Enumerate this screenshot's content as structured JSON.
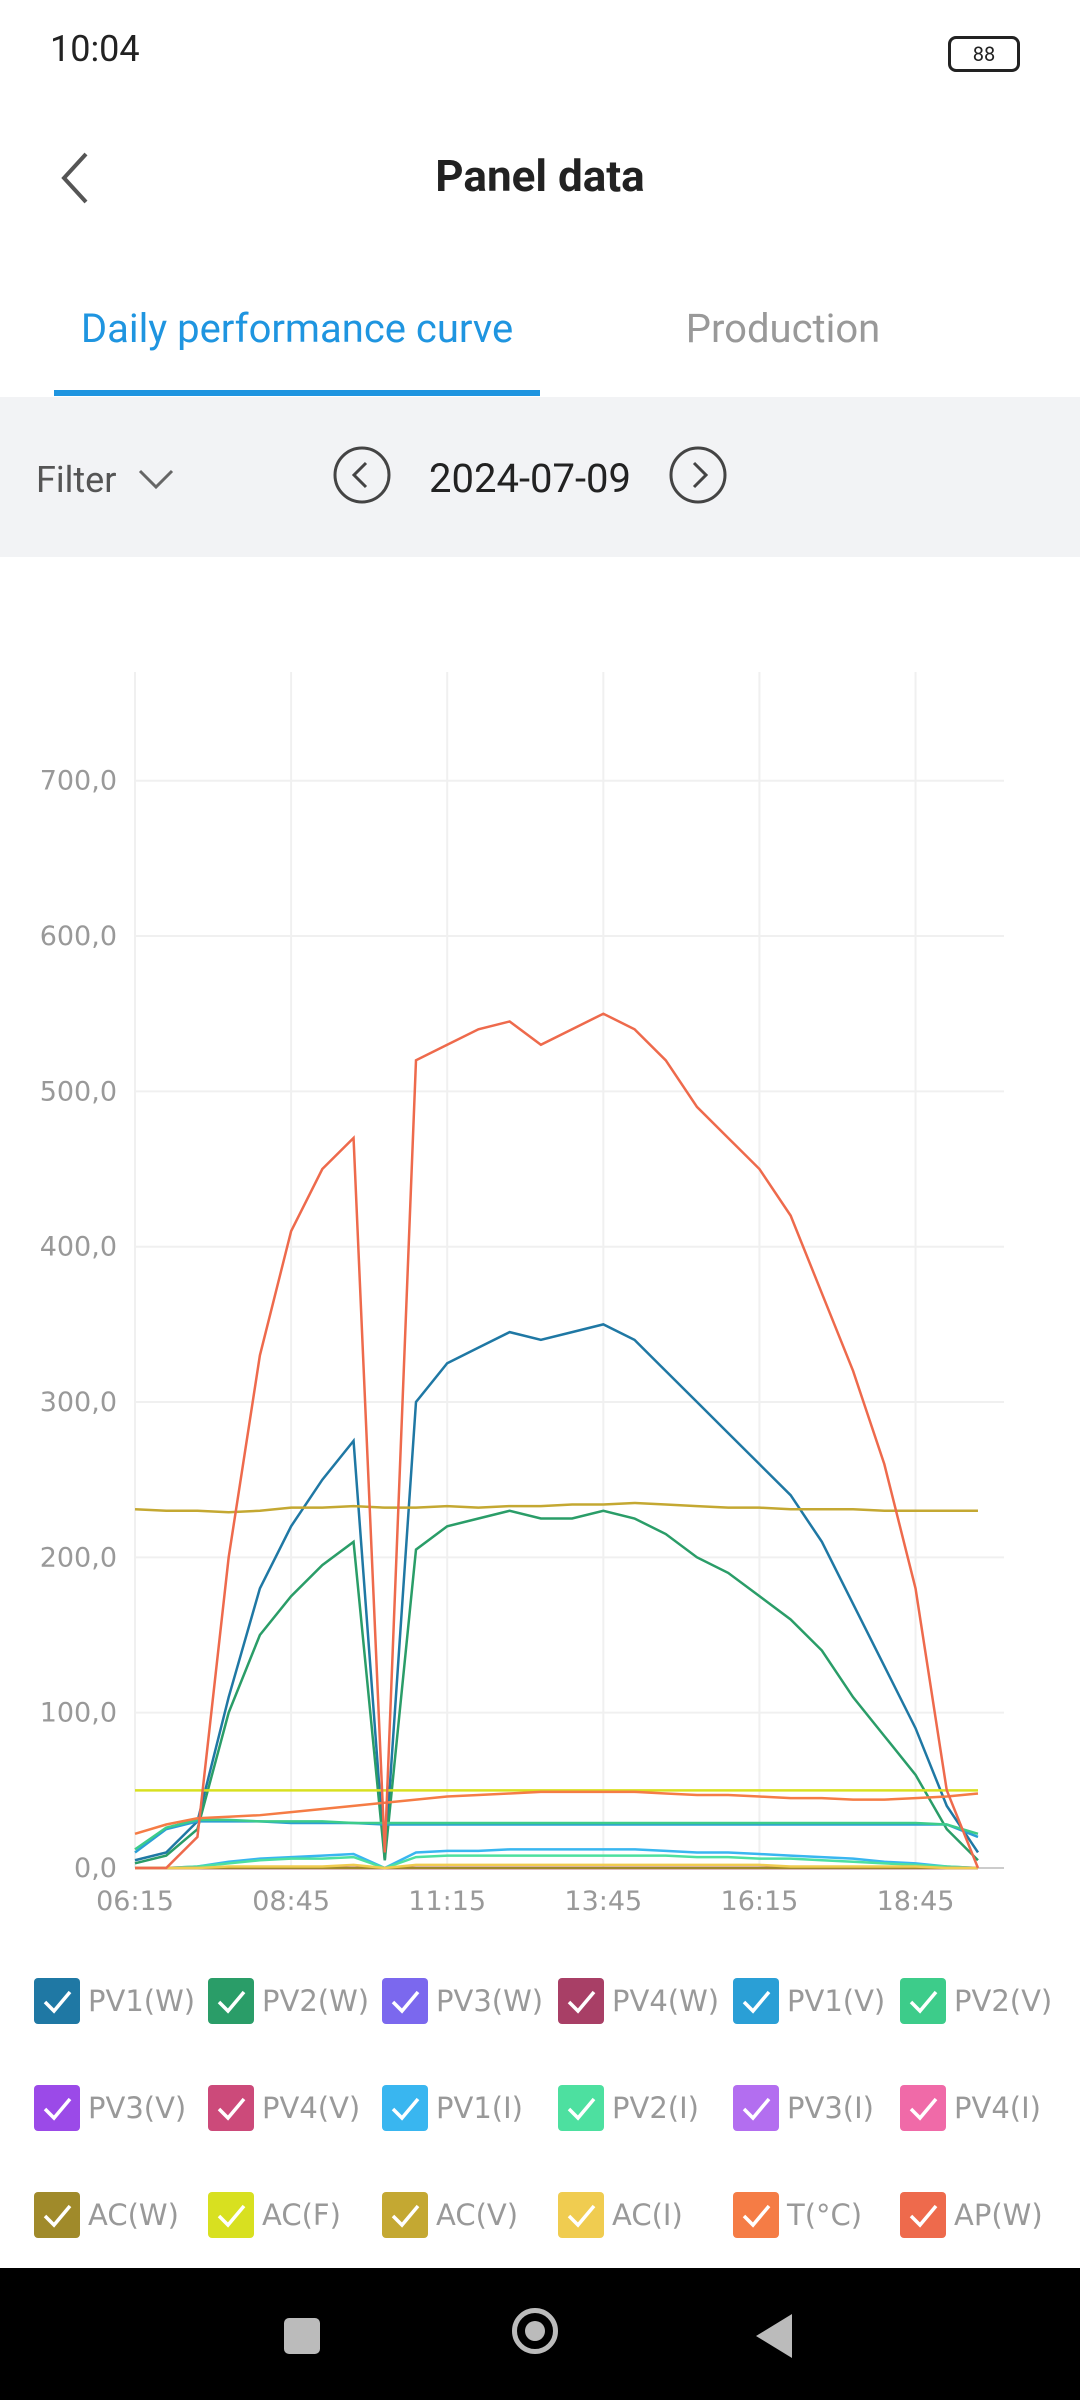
{
  "status_bar": {
    "time": "10:04",
    "battery": "88"
  },
  "header": {
    "title": "Panel data"
  },
  "tabs": [
    "Daily performance curve",
    "Production"
  ],
  "filter": {
    "label": "Filter",
    "date": "2024-07-09"
  },
  "chart_data": {
    "type": "line",
    "x": [
      375,
      405,
      435,
      465,
      495,
      525,
      555,
      585,
      615,
      645,
      675,
      705,
      735,
      765,
      795,
      825,
      855,
      885,
      915,
      945,
      975,
      1005,
      1035,
      1065,
      1095,
      1125,
      1155,
      1185
    ],
    "xlim": [
      375,
      1210
    ],
    "xticks": [
      {
        "value": 375,
        "label": "06:15"
      },
      {
        "value": 525,
        "label": "08:45"
      },
      {
        "value": 675,
        "label": "11:15"
      },
      {
        "value": 825,
        "label": "13:45"
      },
      {
        "value": 975,
        "label": "16:15"
      },
      {
        "value": 1125,
        "label": "18:45"
      }
    ],
    "ylim": [
      0,
      770
    ],
    "yticks": [
      {
        "value": 0,
        "label": "0,0"
      },
      {
        "value": 100,
        "label": "100,0"
      },
      {
        "value": 200,
        "label": "200,0"
      },
      {
        "value": 300,
        "label": "300,0"
      },
      {
        "value": 400,
        "label": "400,0"
      },
      {
        "value": 500,
        "label": "500,0"
      },
      {
        "value": 600,
        "label": "600,0"
      },
      {
        "value": 700,
        "label": "700,0"
      }
    ],
    "grid": true,
    "series": [
      {
        "name": "PV1(W)",
        "color": "#1f78a4",
        "values": [
          5,
          10,
          30,
          110,
          180,
          220,
          250,
          275,
          5,
          300,
          325,
          335,
          345,
          340,
          345,
          350,
          340,
          320,
          300,
          280,
          260,
          240,
          210,
          170,
          130,
          90,
          40,
          10
        ]
      },
      {
        "name": "PV2(W)",
        "color": "#2a9d68",
        "values": [
          3,
          8,
          25,
          100,
          150,
          175,
          195,
          210,
          5,
          205,
          220,
          225,
          230,
          225,
          225,
          230,
          225,
          215,
          200,
          190,
          175,
          160,
          140,
          110,
          85,
          60,
          25,
          5
        ]
      },
      {
        "name": "PV3(W)",
        "color": "#7b68ee",
        "values": [
          0,
          0,
          0,
          0,
          0,
          0,
          0,
          0,
          0,
          0,
          0,
          0,
          0,
          0,
          0,
          0,
          0,
          0,
          0,
          0,
          0,
          0,
          0,
          0,
          0,
          0,
          0,
          0
        ]
      },
      {
        "name": "PV4(W)",
        "color": "#a83f66",
        "values": [
          0,
          0,
          0,
          0,
          0,
          0,
          0,
          0,
          0,
          0,
          0,
          0,
          0,
          0,
          0,
          0,
          0,
          0,
          0,
          0,
          0,
          0,
          0,
          0,
          0,
          0,
          0,
          0
        ]
      },
      {
        "name": "PV1(V)",
        "color": "#2a9fd6",
        "values": [
          10,
          25,
          30,
          30,
          30,
          29,
          29,
          29,
          28,
          28,
          28,
          28,
          28,
          28,
          28,
          28,
          28,
          28,
          28,
          28,
          28,
          28,
          28,
          28,
          28,
          28,
          28,
          20
        ]
      },
      {
        "name": "PV2(V)",
        "color": "#3dcc8a",
        "values": [
          12,
          26,
          31,
          31,
          30,
          30,
          30,
          29,
          29,
          29,
          29,
          29,
          29,
          29,
          29,
          29,
          29,
          29,
          29,
          29,
          29,
          29,
          29,
          29,
          29,
          29,
          28,
          22
        ]
      },
      {
        "name": "PV3(V)",
        "color": "#9b4ae8",
        "values": [
          0,
          0,
          0,
          0,
          0,
          0,
          0,
          0,
          0,
          0,
          0,
          0,
          0,
          0,
          0,
          0,
          0,
          0,
          0,
          0,
          0,
          0,
          0,
          0,
          0,
          0,
          0,
          0
        ]
      },
      {
        "name": "PV4(V)",
        "color": "#cc4a7a",
        "values": [
          0,
          0,
          0,
          0,
          0,
          0,
          0,
          0,
          0,
          0,
          0,
          0,
          0,
          0,
          0,
          0,
          0,
          0,
          0,
          0,
          0,
          0,
          0,
          0,
          0,
          0,
          0,
          0
        ]
      },
      {
        "name": "PV1(I)",
        "color": "#39b6f0",
        "values": [
          0,
          0,
          1,
          4,
          6,
          7,
          8,
          9,
          0,
          10,
          11,
          11,
          12,
          12,
          12,
          12,
          12,
          11,
          10,
          10,
          9,
          8,
          7,
          6,
          4,
          3,
          1,
          0
        ]
      },
      {
        "name": "PV2(I)",
        "color": "#4de0a0",
        "values": [
          0,
          0,
          1,
          3,
          5,
          6,
          6,
          7,
          0,
          7,
          8,
          8,
          8,
          8,
          8,
          8,
          8,
          8,
          7,
          7,
          6,
          6,
          5,
          4,
          3,
          2,
          1,
          0
        ]
      },
      {
        "name": "PV3(I)",
        "color": "#b36ef0",
        "values": [
          0,
          0,
          0,
          0,
          0,
          0,
          0,
          0,
          0,
          0,
          0,
          0,
          0,
          0,
          0,
          0,
          0,
          0,
          0,
          0,
          0,
          0,
          0,
          0,
          0,
          0,
          0,
          0
        ]
      },
      {
        "name": "PV4(I)",
        "color": "#f06aa8",
        "values": [
          0,
          0,
          0,
          0,
          0,
          0,
          0,
          0,
          0,
          0,
          0,
          0,
          0,
          0,
          0,
          0,
          0,
          0,
          0,
          0,
          0,
          0,
          0,
          0,
          0,
          0,
          0,
          0
        ]
      },
      {
        "name": "AC(W)",
        "color": "#a08a2a",
        "values": [
          0,
          0,
          0,
          0,
          0,
          0,
          0,
          0,
          0,
          0,
          0,
          0,
          0,
          0,
          0,
          0,
          0,
          0,
          0,
          0,
          0,
          0,
          0,
          0,
          0,
          0,
          0,
          0
        ]
      },
      {
        "name": "AC(F)",
        "color": "#d8e020",
        "values": [
          50,
          50,
          50,
          50,
          50,
          50,
          50,
          50,
          50,
          50,
          50,
          50,
          50,
          50,
          50,
          50,
          50,
          50,
          50,
          50,
          50,
          50,
          50,
          50,
          50,
          50,
          50,
          50
        ]
      },
      {
        "name": "AC(V)",
        "color": "#c4a832",
        "values": [
          231,
          230,
          230,
          229,
          230,
          232,
          232,
          233,
          232,
          232,
          233,
          232,
          233,
          233,
          234,
          234,
          235,
          234,
          233,
          232,
          232,
          231,
          231,
          231,
          230,
          230,
          230,
          230
        ]
      },
      {
        "name": "AC(I)",
        "color": "#f0cc50",
        "values": [
          0,
          0,
          0,
          1,
          1,
          1,
          1,
          2,
          0,
          2,
          2,
          2,
          2,
          2,
          2,
          2,
          2,
          2,
          2,
          2,
          2,
          1,
          1,
          1,
          1,
          1,
          0,
          0
        ]
      },
      {
        "name": "T(°C)",
        "color": "#f57c45",
        "values": [
          22,
          28,
          32,
          33,
          34,
          36,
          38,
          40,
          42,
          44,
          46,
          47,
          48,
          49,
          49,
          49,
          49,
          48,
          47,
          47,
          46,
          45,
          45,
          44,
          44,
          45,
          46,
          48
        ]
      },
      {
        "name": "AP(W)",
        "color": "#ee6a4c",
        "values": [
          0,
          0,
          20,
          200,
          330,
          410,
          450,
          470,
          10,
          520,
          530,
          540,
          545,
          530,
          540,
          550,
          540,
          520,
          490,
          470,
          450,
          420,
          370,
          320,
          260,
          180,
          50,
          0
        ]
      }
    ]
  }
}
